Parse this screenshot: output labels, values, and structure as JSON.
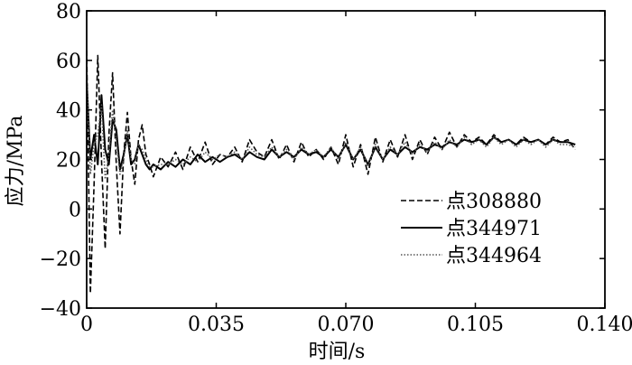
{
  "chart_data": {
    "type": "line",
    "title": "",
    "xlabel": "时间/s",
    "ylabel": "应力/MPa",
    "xlim": [
      0,
      0.14
    ],
    "ylim": [
      -40,
      80
    ],
    "xticks": [
      0,
      0.035,
      0.07,
      0.105,
      0.14
    ],
    "xtick_labels": [
      "0",
      "0.035",
      "0.070",
      "0.105",
      "0.140"
    ],
    "yticks": [
      -40,
      -20,
      0,
      20,
      40,
      60,
      80
    ],
    "ytick_labels": [
      "−40",
      "−20",
      "0",
      "20",
      "40",
      "60",
      "80"
    ],
    "grid": false,
    "legend_position": "right",
    "series": [
      {
        "name": "点308880",
        "style": "dashed",
        "x": [
          0,
          0.001,
          0.002,
          0.003,
          0.004,
          0.005,
          0.006,
          0.007,
          0.008,
          0.009,
          0.01,
          0.011,
          0.012,
          0.013,
          0.014,
          0.015,
          0.016,
          0.017,
          0.018,
          0.02,
          0.022,
          0.024,
          0.026,
          0.028,
          0.03,
          0.032,
          0.034,
          0.036,
          0.038,
          0.04,
          0.042,
          0.044,
          0.046,
          0.048,
          0.05,
          0.052,
          0.054,
          0.056,
          0.058,
          0.06,
          0.062,
          0.064,
          0.066,
          0.068,
          0.07,
          0.072,
          0.074,
          0.076,
          0.078,
          0.08,
          0.082,
          0.084,
          0.086,
          0.088,
          0.09,
          0.092,
          0.094,
          0.096,
          0.098,
          0.1,
          0.102,
          0.104,
          0.106,
          0.108,
          0.11,
          0.112,
          0.114,
          0.116,
          0.118,
          0.12,
          0.122,
          0.124,
          0.126,
          0.128,
          0.13,
          0.132
        ],
        "values": [
          64,
          -34,
          10,
          62,
          20,
          -16,
          30,
          55,
          18,
          -10,
          22,
          39,
          20,
          10,
          28,
          34,
          22,
          18,
          13,
          21,
          17,
          23,
          16,
          25,
          19,
          27,
          18,
          22,
          21,
          25,
          19,
          28,
          23,
          21,
          28,
          20,
          26,
          19,
          27,
          21,
          24,
          20,
          25,
          18,
          30,
          17,
          26,
          14,
          29,
          19,
          28,
          21,
          30,
          20,
          28,
          22,
          29,
          24,
          31,
          25,
          30,
          27,
          29,
          26,
          30,
          27,
          28,
          26,
          29,
          27,
          28,
          26,
          29,
          27,
          28,
          24
        ]
      },
      {
        "name": "点344971",
        "style": "solid",
        "x": [
          0,
          0.001,
          0.002,
          0.003,
          0.004,
          0.005,
          0.006,
          0.007,
          0.008,
          0.009,
          0.01,
          0.011,
          0.012,
          0.013,
          0.014,
          0.015,
          0.016,
          0.017,
          0.018,
          0.02,
          0.022,
          0.024,
          0.026,
          0.028,
          0.03,
          0.032,
          0.034,
          0.036,
          0.038,
          0.04,
          0.042,
          0.044,
          0.046,
          0.048,
          0.05,
          0.052,
          0.054,
          0.056,
          0.058,
          0.06,
          0.062,
          0.064,
          0.066,
          0.068,
          0.07,
          0.072,
          0.074,
          0.076,
          0.078,
          0.08,
          0.082,
          0.084,
          0.086,
          0.088,
          0.09,
          0.092,
          0.094,
          0.096,
          0.098,
          0.1,
          0.102,
          0.104,
          0.106,
          0.108,
          0.11,
          0.112,
          0.114,
          0.116,
          0.118,
          0.12,
          0.122,
          0.124,
          0.126,
          0.128,
          0.13,
          0.132
        ],
        "values": [
          52,
          20,
          30,
          18,
          46,
          24,
          18,
          36,
          32,
          16,
          22,
          30,
          18,
          20,
          26,
          22,
          18,
          16,
          18,
          16,
          19,
          17,
          20,
          18,
          22,
          19,
          21,
          19,
          21,
          22,
          20,
          23,
          21,
          20,
          24,
          21,
          23,
          21,
          24,
          22,
          23,
          21,
          24,
          21,
          26,
          20,
          24,
          18,
          25,
          20,
          24,
          22,
          25,
          23,
          25,
          24,
          26,
          25,
          27,
          26,
          28,
          27,
          28,
          26,
          29,
          27,
          28,
          26,
          28,
          27,
          28,
          26,
          28,
          27,
          27,
          26
        ]
      },
      {
        "name": "点344964",
        "style": "dotted",
        "x": [
          0,
          0.001,
          0.002,
          0.003,
          0.004,
          0.005,
          0.006,
          0.007,
          0.008,
          0.009,
          0.01,
          0.011,
          0.012,
          0.013,
          0.014,
          0.015,
          0.016,
          0.017,
          0.018,
          0.02,
          0.022,
          0.024,
          0.026,
          0.028,
          0.03,
          0.032,
          0.034,
          0.036,
          0.038,
          0.04,
          0.042,
          0.044,
          0.046,
          0.048,
          0.05,
          0.052,
          0.054,
          0.056,
          0.058,
          0.06,
          0.062,
          0.064,
          0.066,
          0.068,
          0.07,
          0.072,
          0.074,
          0.076,
          0.078,
          0.08,
          0.082,
          0.084,
          0.086,
          0.088,
          0.09,
          0.092,
          0.094,
          0.096,
          0.098,
          0.1,
          0.102,
          0.104,
          0.106,
          0.108,
          0.11,
          0.112,
          0.114,
          0.116,
          0.118,
          0.12,
          0.122,
          0.124,
          0.126,
          0.128,
          0.13,
          0.132
        ],
        "values": [
          56,
          14,
          26,
          30,
          42,
          12,
          22,
          40,
          28,
          14,
          20,
          32,
          20,
          18,
          26,
          24,
          20,
          17,
          17,
          18,
          18,
          20,
          18,
          21,
          19,
          23,
          20,
          22,
          21,
          23,
          20,
          25,
          22,
          21,
          25,
          21,
          24,
          20,
          25,
          22,
          24,
          21,
          25,
          20,
          27,
          20,
          25,
          17,
          26,
          20,
          25,
          22,
          27,
          22,
          26,
          23,
          27,
          24,
          28,
          25,
          29,
          26,
          28,
          25,
          29,
          26,
          28,
          25,
          28,
          26,
          28,
          25,
          28,
          26,
          26,
          25
        ]
      }
    ]
  }
}
